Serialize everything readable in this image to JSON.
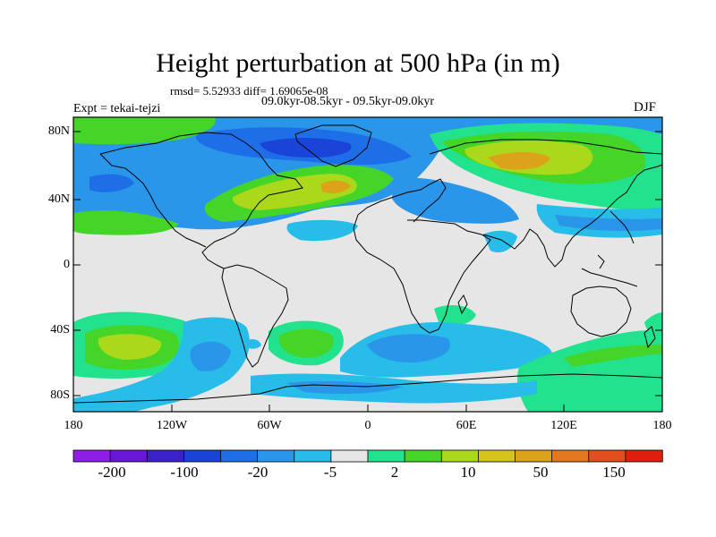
{
  "title": "Height perturbation at 500 hPa (in m)",
  "stats": "rmsd= 5.52933 diff= 1.69065e-08",
  "subtitle": "09.0kyr-08.5kyr - 09.5kyr-09.0kyr",
  "experiment": "Expt = tekai-tejzi",
  "season": "DJF",
  "lat_axis_labels": [
    "80N",
    "40N",
    "0",
    "40S",
    "80S"
  ],
  "lon_axis_labels": [
    "180",
    "120W",
    "60W",
    "0",
    "60E",
    "120E",
    "180"
  ],
  "colorbar": {
    "colors": [
      "#8c1ee6",
      "#6a16d8",
      "#3a22c8",
      "#1a44d8",
      "#1e6ee8",
      "#2a96ea",
      "#28bce8",
      "#e6e6e6",
      "#22e28e",
      "#45d428",
      "#aad81a",
      "#d6c41a",
      "#dca21a",
      "#e4781e",
      "#e24e1e",
      "#e01e10"
    ],
    "labels": [
      "-200",
      "-100",
      "-20",
      "-5",
      "2",
      "10",
      "50",
      "150"
    ]
  },
  "colors": {
    "land_outline": "#000000",
    "background_field": "#e6e6e6"
  }
}
